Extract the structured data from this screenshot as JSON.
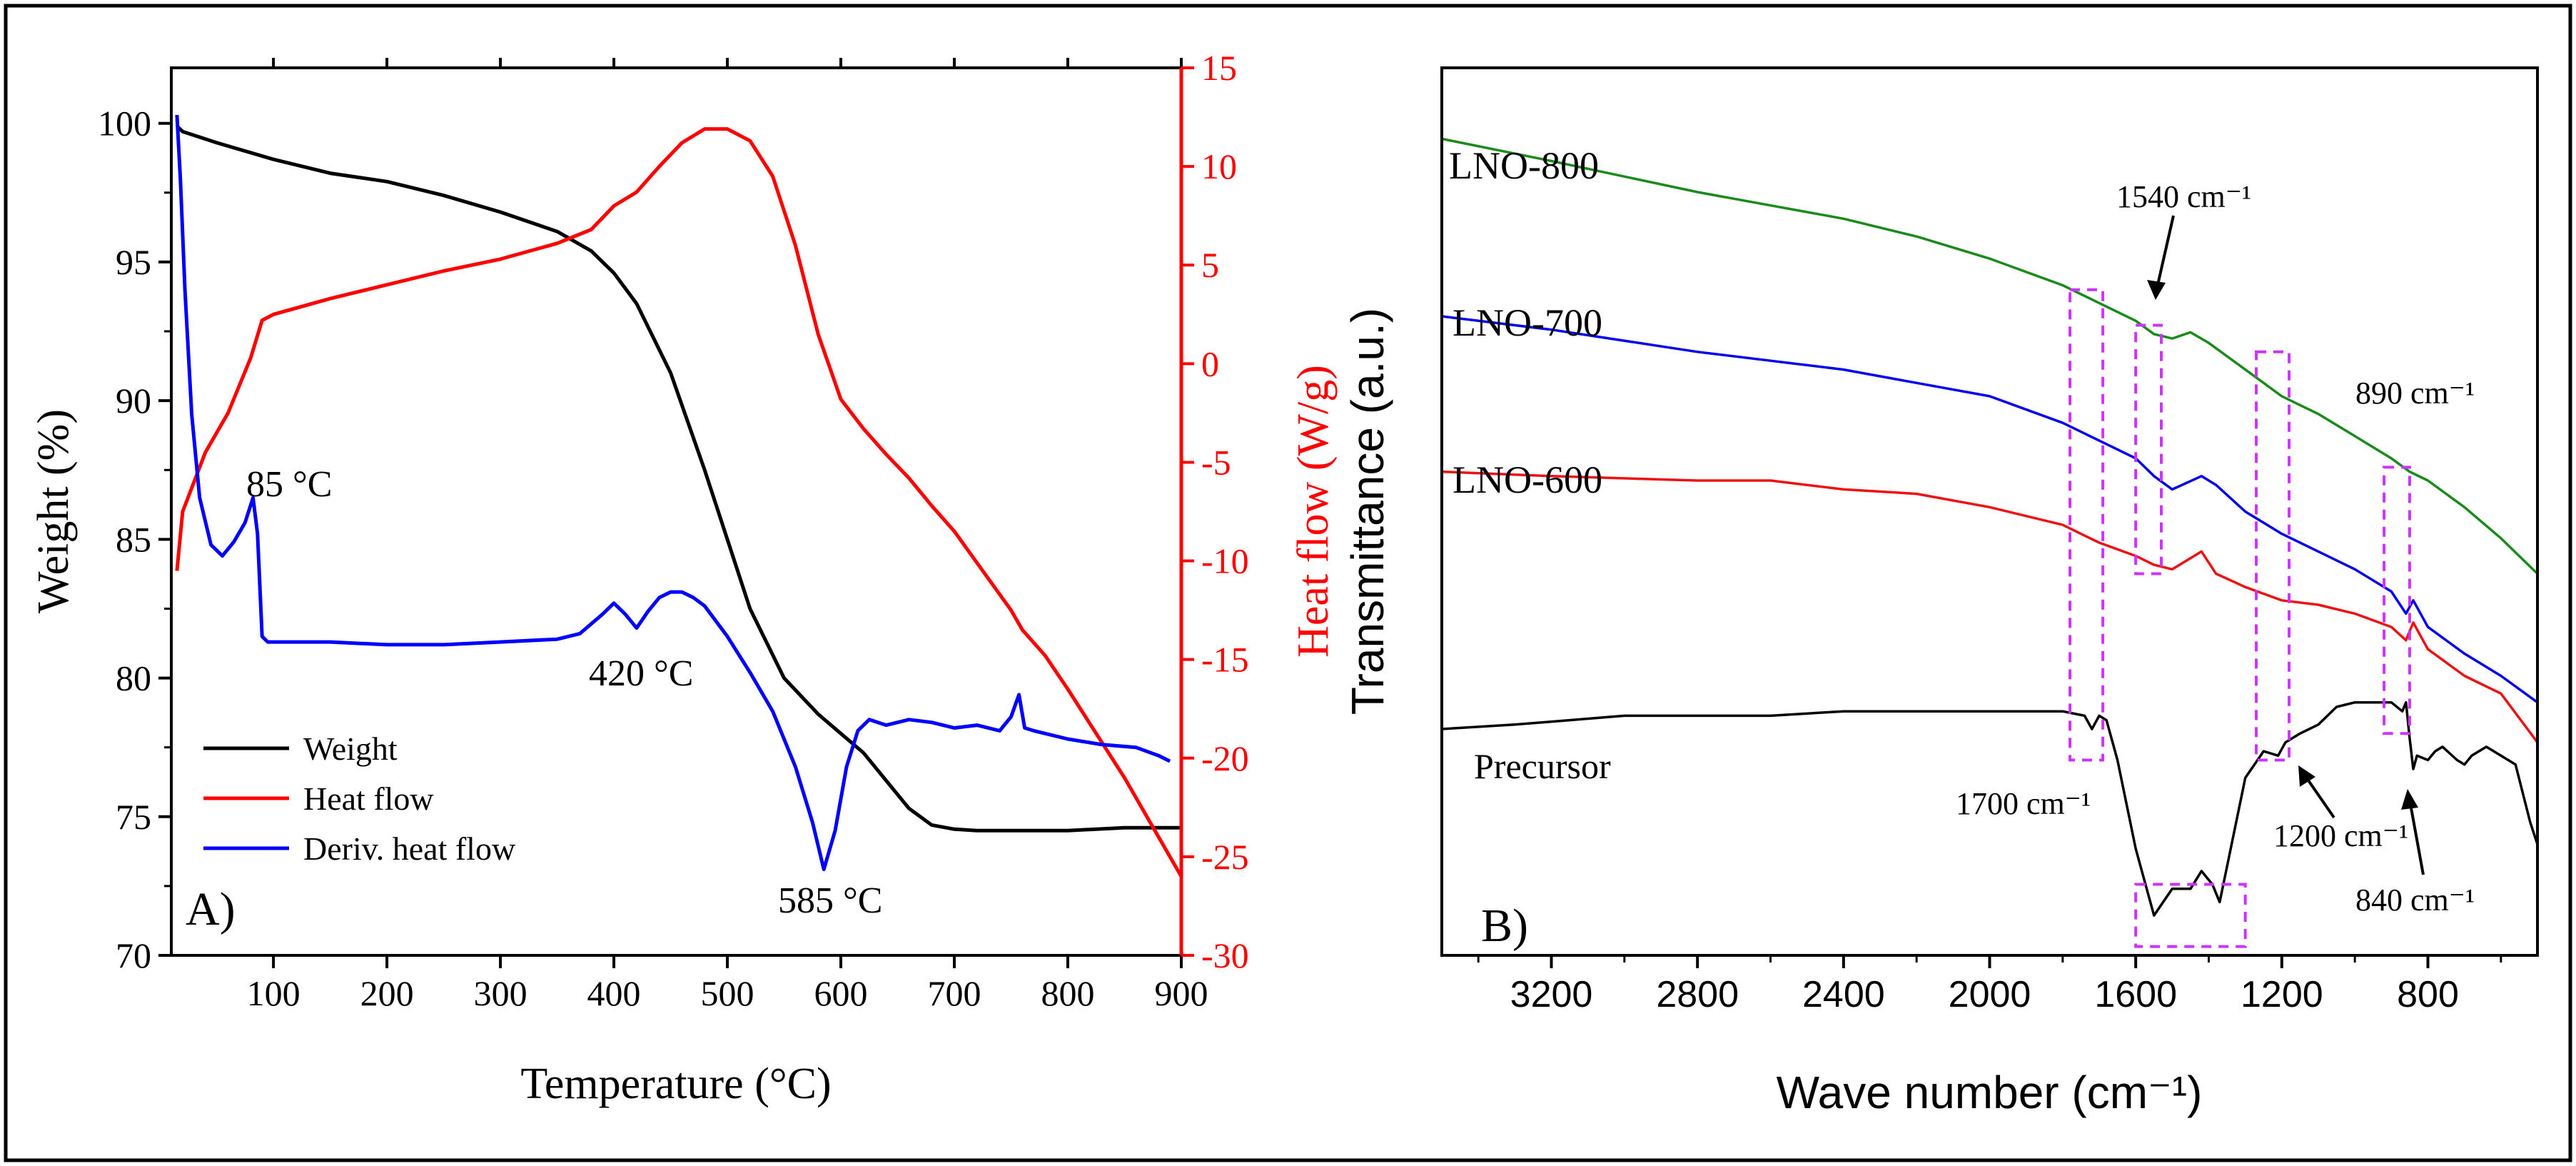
{
  "chart_data": [
    {
      "panel": "A)",
      "type": "line",
      "xlabel": "Temperature (°C)",
      "ylabel": "Weight (%)",
      "y2label": "Heat flow (W/g)",
      "xlim": [
        10,
        900
      ],
      "ylim": [
        70,
        102
      ],
      "y2lim": [
        -30,
        15
      ],
      "xticks": [
        100,
        200,
        300,
        400,
        500,
        600,
        700,
        800,
        900
      ],
      "yticks": [
        70,
        75,
        80,
        85,
        90,
        95,
        100
      ],
      "y2ticks": [
        -30,
        -25,
        -20,
        -15,
        -10,
        -5,
        0,
        5,
        10,
        15
      ],
      "legend_position": "bottom-left",
      "colors": {
        "weight": "#000000",
        "heat_flow": "#ff0000",
        "deriv": "#0000ff",
        "axis2": "#ff0000"
      },
      "series": [
        {
          "name": "Weight",
          "axis": "left",
          "color": "#000000",
          "x": [
            15,
            20,
            50,
            100,
            150,
            200,
            250,
            300,
            350,
            380,
            400,
            420,
            450,
            480,
            500,
            520,
            550,
            580,
            600,
            620,
            640,
            660,
            680,
            700,
            720,
            750,
            800,
            850,
            900
          ],
          "y": [
            99.9,
            99.7,
            99.3,
            98.7,
            98.2,
            97.9,
            97.4,
            96.8,
            96.1,
            95.4,
            94.6,
            93.5,
            91.0,
            87.5,
            85.0,
            82.5,
            80.0,
            78.7,
            78.0,
            77.3,
            76.3,
            75.3,
            74.7,
            74.55,
            74.5,
            74.5,
            74.5,
            74.6,
            74.6
          ]
        },
        {
          "name": "Heat flow",
          "axis": "right",
          "color": "#ff0000",
          "x": [
            15,
            20,
            40,
            60,
            80,
            90,
            100,
            150,
            200,
            250,
            300,
            350,
            380,
            400,
            420,
            440,
            460,
            480,
            500,
            520,
            540,
            560,
            580,
            600,
            620,
            640,
            660,
            680,
            700,
            750,
            760,
            780,
            800,
            850,
            880,
            900
          ],
          "y": [
            -10.5,
            -7.5,
            -4.5,
            -2.5,
            0.3,
            2.2,
            2.5,
            3.3,
            4.0,
            4.7,
            5.3,
            6.1,
            6.8,
            8.0,
            8.7,
            10.0,
            11.2,
            11.9,
            11.9,
            11.3,
            9.5,
            6.0,
            1.5,
            -1.8,
            -3.3,
            -4.6,
            -5.8,
            -7.2,
            -8.5,
            -12.5,
            -13.5,
            -14.8,
            -16.5,
            -21.0,
            -24.0,
            -26.0
          ]
        },
        {
          "name": "Deriv. heat flow",
          "axis": "left",
          "color": "#0000ff",
          "x": [
            15,
            18,
            22,
            28,
            35,
            45,
            55,
            65,
            75,
            82,
            86,
            90,
            95,
            110,
            150,
            200,
            250,
            300,
            350,
            370,
            390,
            400,
            410,
            420,
            430,
            440,
            450,
            460,
            470,
            480,
            500,
            520,
            540,
            560,
            575,
            585,
            595,
            605,
            615,
            625,
            640,
            660,
            680,
            700,
            720,
            740,
            750,
            757,
            762,
            770,
            800,
            830,
            860,
            880,
            890
          ],
          "y": [
            100.3,
            98,
            94,
            89.5,
            86.5,
            84.8,
            84.4,
            84.9,
            85.6,
            86.5,
            85.2,
            81.5,
            81.3,
            81.3,
            81.3,
            81.2,
            81.2,
            81.3,
            81.4,
            81.6,
            82.3,
            82.7,
            82.3,
            81.8,
            82.4,
            82.9,
            83.1,
            83.1,
            82.9,
            82.6,
            81.5,
            80.2,
            78.8,
            76.8,
            74.8,
            73.1,
            74.5,
            76.8,
            78.1,
            78.5,
            78.3,
            78.5,
            78.4,
            78.2,
            78.3,
            78.1,
            78.6,
            79.4,
            78.2,
            78.1,
            77.8,
            77.6,
            77.5,
            77.2,
            77.0
          ]
        }
      ],
      "annotations": [
        {
          "text": "85 °C",
          "x": 85,
          "y": 86.5
        },
        {
          "text": "420 °C",
          "x": 420,
          "y": 81.8
        },
        {
          "text": "585 °C",
          "x": 585,
          "y": 73.1
        }
      ]
    },
    {
      "panel": "B)",
      "type": "line",
      "xlabel": "Wave number (cm⁻¹)",
      "ylabel": "Transmittance (a.u.)",
      "xlim": [
        3500,
        500
      ],
      "ylim": [
        0,
        100
      ],
      "xticks": [
        3200,
        2800,
        2400,
        2000,
        1600,
        1200,
        800
      ],
      "legend_position": "none",
      "series": [
        {
          "name": "LNO-800",
          "color": "#1a8a1a",
          "x": [
            3500,
            3200,
            2800,
            2600,
            2400,
            2200,
            2000,
            1800,
            1700,
            1600,
            1550,
            1500,
            1450,
            1400,
            1300,
            1200,
            1100,
            1000,
            900,
            850,
            800,
            700,
            600,
            500
          ],
          "y": [
            92,
            89.5,
            86,
            84.5,
            83,
            81,
            78.5,
            75.5,
            73.5,
            71.5,
            70,
            69.5,
            70.2,
            69,
            66,
            63,
            61,
            58.5,
            56,
            54.5,
            53.5,
            50.5,
            47,
            43
          ]
        },
        {
          "name": "LNO-700",
          "color": "#0000ee",
          "x": [
            3500,
            3200,
            2800,
            2600,
            2400,
            2200,
            2000,
            1800,
            1700,
            1600,
            1550,
            1500,
            1420,
            1380,
            1300,
            1200,
            1100,
            1000,
            900,
            860,
            840,
            800,
            700,
            600,
            500
          ],
          "y": [
            72,
            70.5,
            68,
            67,
            66,
            64.5,
            63,
            60,
            58,
            56,
            54,
            52.5,
            54,
            53,
            50,
            47.5,
            45.5,
            43.5,
            41,
            38.5,
            40,
            37,
            34,
            31.5,
            28.5
          ]
        },
        {
          "name": "LNO-600",
          "color": "#ee1111",
          "x": [
            3500,
            3200,
            2800,
            2600,
            2400,
            2200,
            2000,
            1800,
            1700,
            1600,
            1550,
            1500,
            1420,
            1380,
            1300,
            1200,
            1100,
            1000,
            900,
            860,
            840,
            800,
            700,
            600,
            500
          ],
          "y": [
            54.5,
            54,
            53.5,
            53.5,
            52.5,
            52,
            50.5,
            48.5,
            46.5,
            45,
            44,
            43.5,
            45.5,
            43,
            41.5,
            40,
            39.5,
            38.5,
            37,
            35.5,
            37.5,
            34.5,
            31.5,
            29.5,
            24
          ]
        },
        {
          "name": "Precursor",
          "color": "#000000",
          "x": [
            3500,
            3300,
            3000,
            2800,
            2600,
            2400,
            2200,
            2000,
            1800,
            1740,
            1720,
            1700,
            1680,
            1650,
            1600,
            1550,
            1500,
            1450,
            1420,
            1390,
            1370,
            1340,
            1300,
            1250,
            1210,
            1190,
            1150,
            1100,
            1050,
            1000,
            950,
            900,
            870,
            860,
            850,
            840,
            830,
            800,
            780,
            760,
            720,
            700,
            680,
            640,
            600,
            560,
            520,
            500
          ],
          "y": [
            25.5,
            26,
            27,
            27,
            27,
            27.5,
            27.5,
            27.5,
            27.5,
            27,
            25.5,
            27,
            26.5,
            22,
            12,
            4.5,
            7.5,
            7.5,
            9.5,
            8,
            6,
            12,
            20,
            23,
            22.5,
            24,
            25,
            26,
            28,
            28.5,
            28.5,
            28.5,
            27.5,
            28.5,
            24.5,
            21,
            22.5,
            22,
            23,
            23.5,
            22,
            21.5,
            22.5,
            23.5,
            22.5,
            21.5,
            15,
            12.5
          ]
        }
      ],
      "labels": [
        {
          "text": "LNO-800",
          "series": "LNO-800"
        },
        {
          "text": "LNO-700",
          "series": "LNO-700"
        },
        {
          "text": "LNO-600",
          "series": "LNO-600"
        },
        {
          "text": "Precursor",
          "series": "Precursor"
        }
      ],
      "annotations": [
        {
          "text": "1540 cm⁻¹"
        },
        {
          "text": "890 cm⁻¹"
        },
        {
          "text": "1700 cm⁻¹"
        },
        {
          "text": "1200 cm⁻¹"
        },
        {
          "text": "840 cm⁻¹"
        }
      ],
      "highlight_boxes_cm": [
        {
          "x_from": 1780,
          "x_to": 1690,
          "y_from": 22,
          "y_to": 75
        },
        {
          "x_from": 1600,
          "x_to": 1530,
          "y_from": 43,
          "y_to": 71
        },
        {
          "x_from": 1270,
          "x_to": 1180,
          "y_from": 22,
          "y_to": 68
        },
        {
          "x_from": 920,
          "x_to": 850,
          "y_from": 25,
          "y_to": 55
        },
        {
          "x_from": 1600,
          "x_to": 1300,
          "y_from": 1,
          "y_to": 8
        }
      ]
    }
  ]
}
